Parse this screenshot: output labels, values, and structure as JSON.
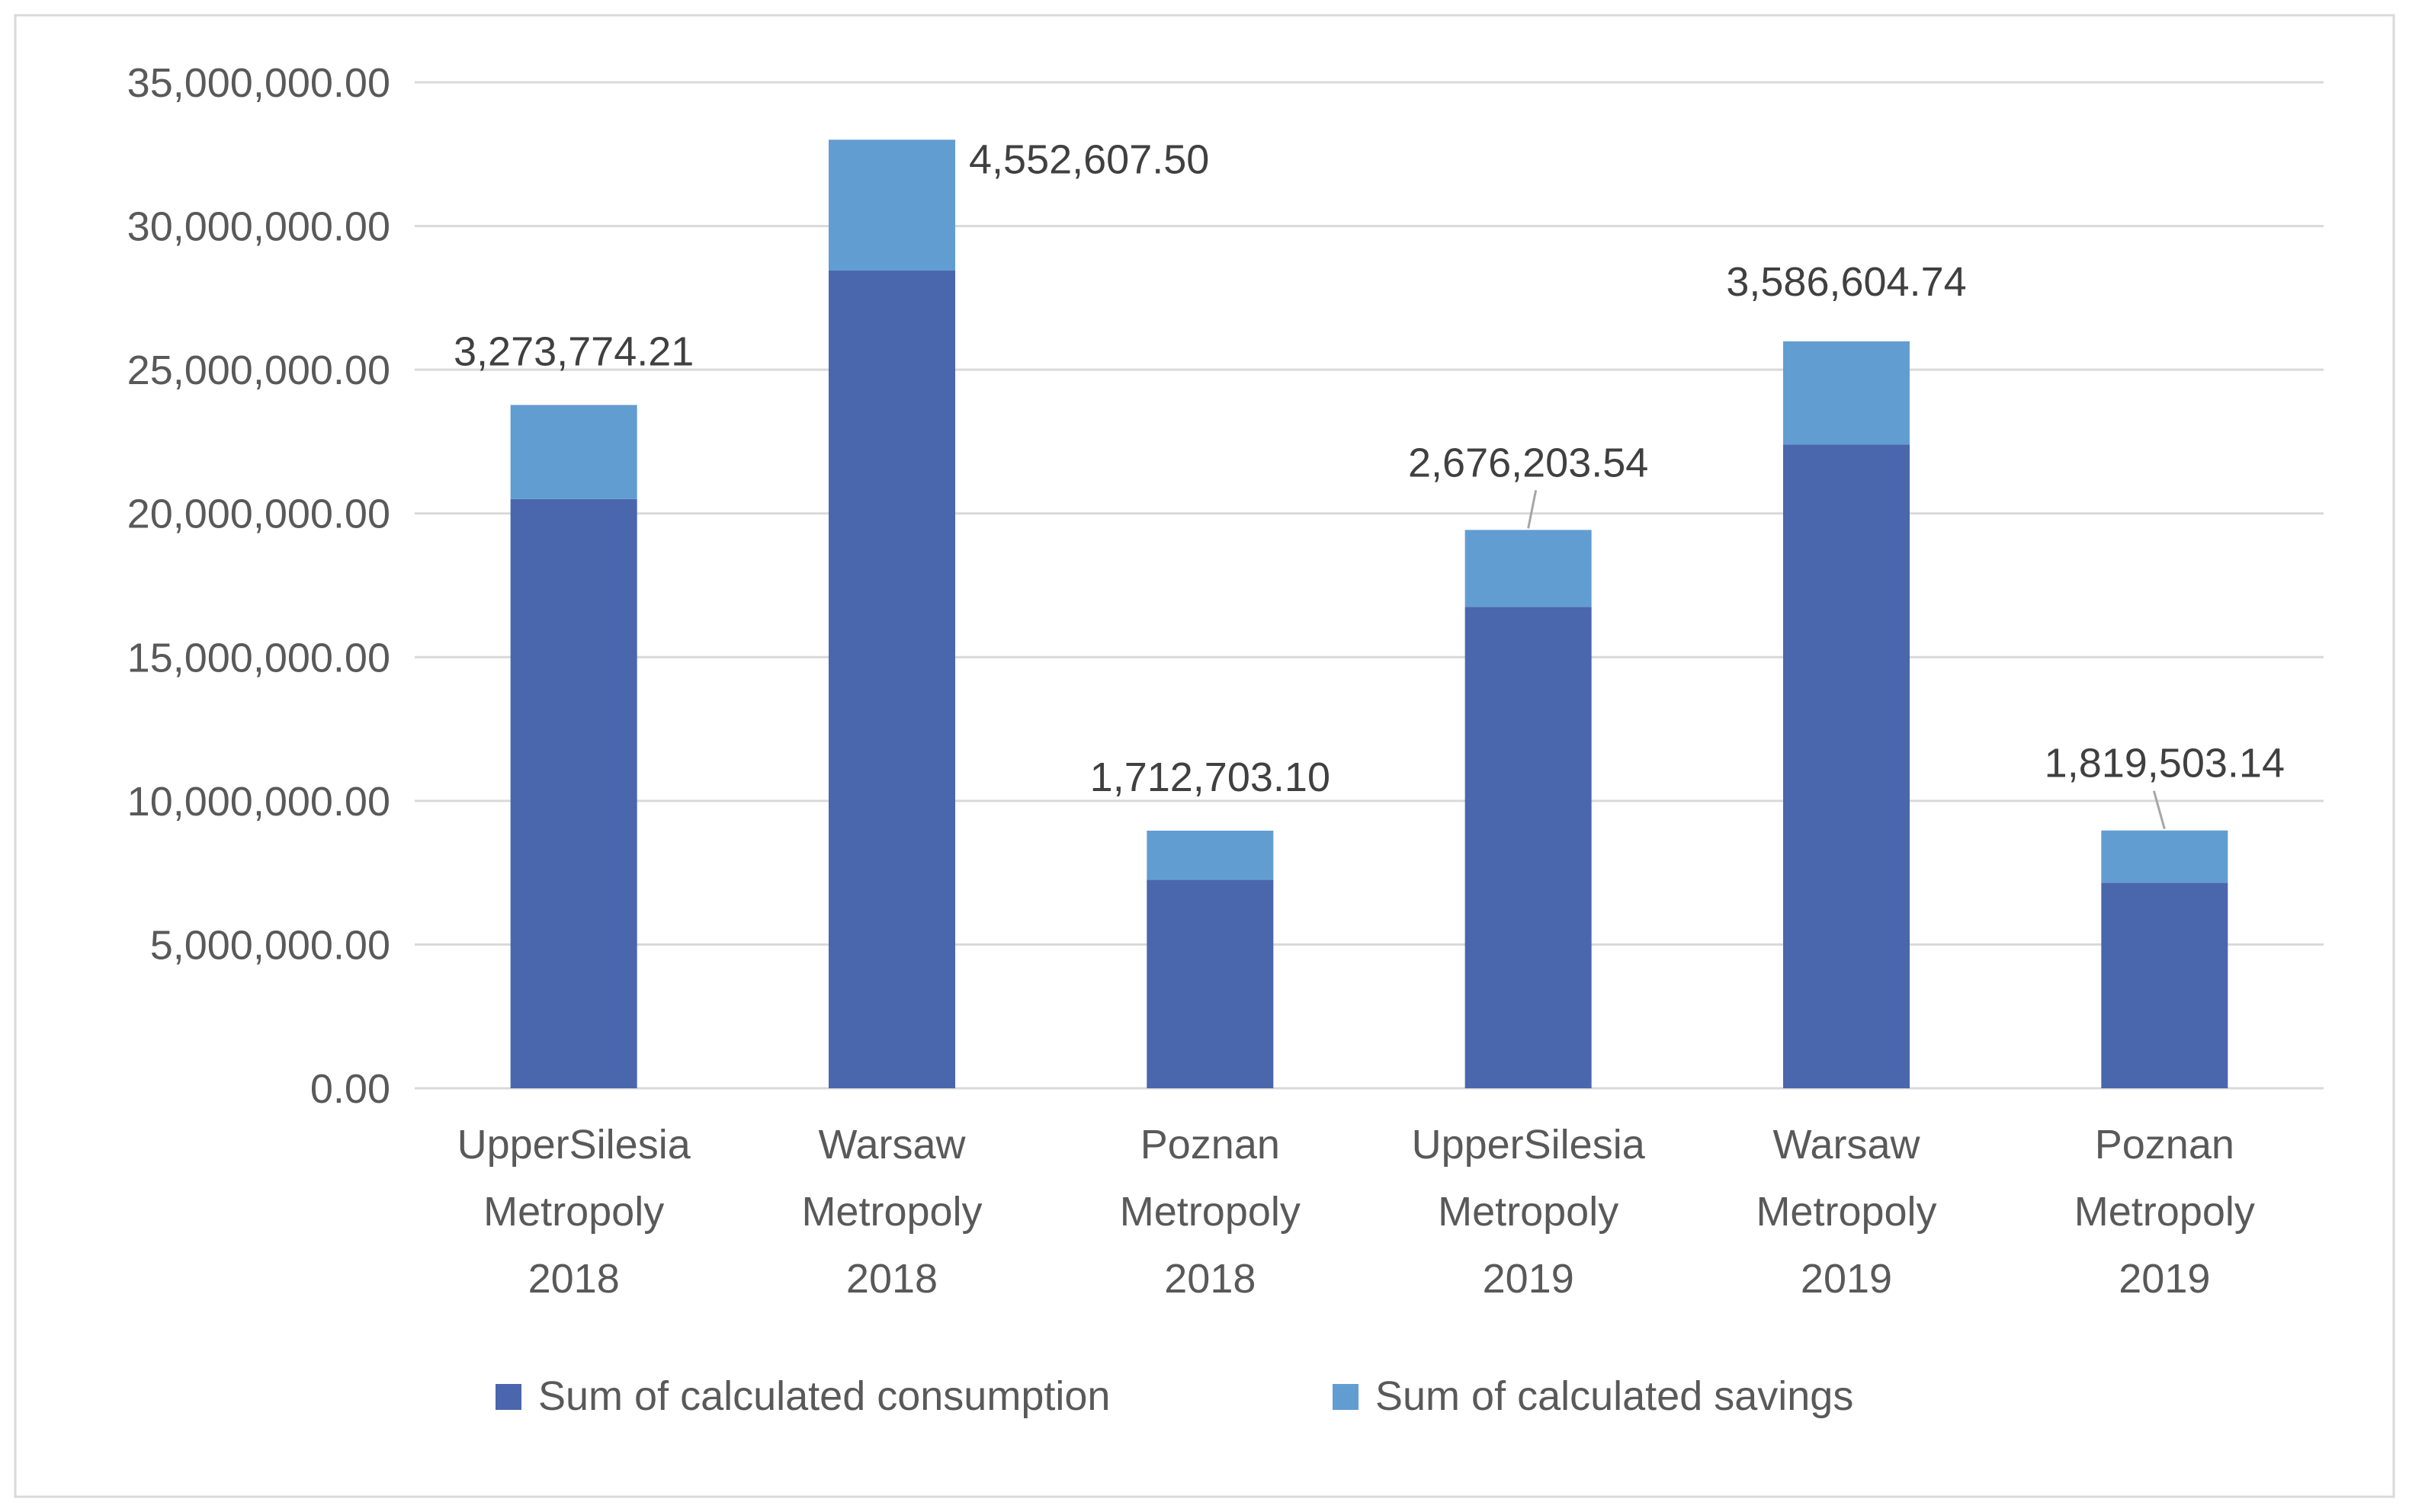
{
  "colors": {
    "consumption": "#4A66AC",
    "savings": "#629DD1",
    "grid": "#D9D9D9",
    "axis_text": "#595959",
    "label_text": "#404040",
    "frame": "#D9D9D9",
    "leader": "#A6A6A6"
  },
  "chart_data": {
    "type": "bar",
    "stacked": true,
    "title": "",
    "xlabel": "",
    "ylabel": "",
    "ylim": [
      0,
      35000000
    ],
    "y_ticks": [
      0,
      5000000,
      10000000,
      15000000,
      20000000,
      25000000,
      30000000,
      35000000
    ],
    "y_tick_labels": [
      "0.00",
      "5,000,000.00",
      "10,000,000.00",
      "15,000,000.00",
      "20,000,000.00",
      "25,000,000.00",
      "30,000,000.00",
      "35,000,000.00"
    ],
    "grid": true,
    "legend_position": "bottom",
    "categories": [
      [
        "UpperSilesia",
        "Metropoly",
        "2018"
      ],
      [
        "Warsaw",
        "Metropoly",
        "2018"
      ],
      [
        "Poznan",
        "Metropoly",
        "2018"
      ],
      [
        "UpperSilesia",
        "Metropoly",
        "2019"
      ],
      [
        "Warsaw",
        "Metropoly",
        "2019"
      ],
      [
        "Poznan",
        "Metropoly",
        "2019"
      ]
    ],
    "series": [
      {
        "name": "Sum of calculated consumption",
        "color_key": "consumption",
        "values": [
          20500000,
          28450000,
          7250000,
          16750000,
          22400000,
          7150000
        ]
      },
      {
        "name": "Sum of calculated savings",
        "color_key": "savings",
        "values": [
          3273774.21,
          4552607.5,
          1712703.1,
          2676203.54,
          3586604.74,
          1819503.14
        ],
        "data_labels": [
          "3,273,774.21",
          "4,552,607.50",
          "1,712,703.10",
          "2,676,203.54",
          "3,586,604.74",
          "1,819,503.14"
        ]
      }
    ]
  }
}
